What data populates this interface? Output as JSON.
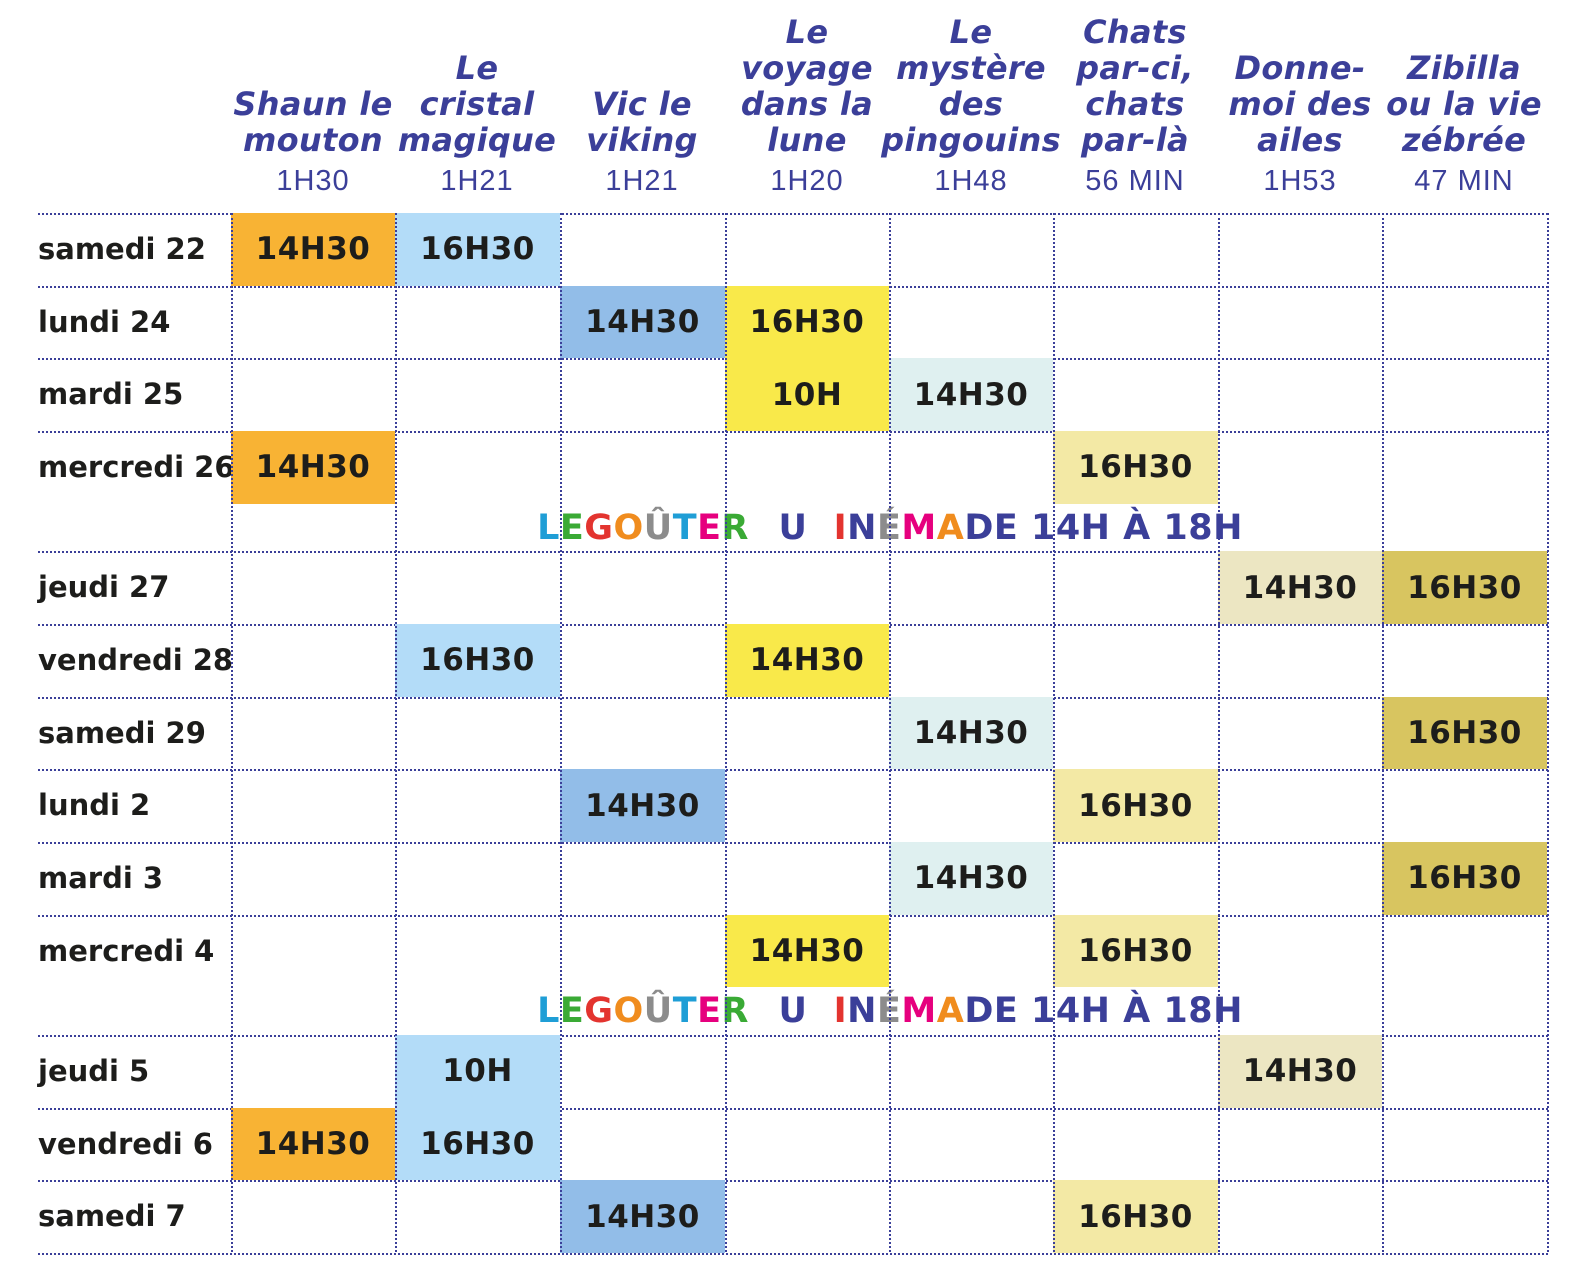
{
  "films": [
    {
      "title": [
        "Shaun le",
        "mouton"
      ],
      "duration": "1H30"
    },
    {
      "title": [
        "Le",
        "cristal",
        "magique"
      ],
      "duration": "1H21"
    },
    {
      "title": [
        "Vic le",
        "viking"
      ],
      "duration": "1H21"
    },
    {
      "title": [
        "Le",
        "voyage",
        "dans la",
        "lune"
      ],
      "duration": "1H20"
    },
    {
      "title": [
        "Le",
        "mystère",
        "des",
        "pingouins"
      ],
      "duration": "1H48"
    },
    {
      "title": [
        "Chats",
        "par-ci,",
        "chats",
        "par-là"
      ],
      "duration": "56 MIN"
    },
    {
      "title": [
        "Donne-",
        "moi des",
        "ailes"
      ],
      "duration": "1H53"
    },
    {
      "title": [
        "Zibilla",
        "ou la vie",
        "zébrée"
      ],
      "duration": "47 MIN"
    }
  ],
  "film_colors": [
    "#f8b334",
    "#b3dcf8",
    "#92bde8",
    "#f9e94a",
    "#dff0f0",
    "#f3e9a5",
    "#ece6c2",
    "#d8c560"
  ],
  "days": [
    {
      "label": "samedi 22",
      "sessions": [
        "14H30",
        "16H30",
        "",
        "",
        "",
        "",
        "",
        ""
      ]
    },
    {
      "label": "lundi 24",
      "sessions": [
        "",
        "",
        "14H30",
        "16H30",
        "",
        "",
        "",
        ""
      ]
    },
    {
      "label": "mardi 25",
      "sessions": [
        "",
        "",
        "",
        "10H",
        "14H30",
        "",
        "",
        ""
      ]
    },
    {
      "label": "mercredi 26",
      "sessions": [
        "14H30",
        "",
        "",
        "",
        "",
        "16H30",
        "",
        ""
      ],
      "banner": true
    },
    {
      "label": "jeudi 27",
      "sessions": [
        "",
        "",
        "",
        "",
        "",
        "",
        "14H30",
        "16H30"
      ]
    },
    {
      "label": "vendredi 28",
      "sessions": [
        "",
        "16H30",
        "",
        "14H30",
        "",
        "",
        "",
        ""
      ]
    },
    {
      "label": "samedi 29",
      "sessions": [
        "",
        "",
        "",
        "",
        "14H30",
        "",
        "",
        "16H30"
      ]
    },
    {
      "label": "lundi 2",
      "sessions": [
        "",
        "",
        "14H30",
        "",
        "",
        "16H30",
        "",
        ""
      ]
    },
    {
      "label": "mardi 3",
      "sessions": [
        "",
        "",
        "",
        "",
        "14H30",
        "",
        "",
        "16H30"
      ]
    },
    {
      "label": "mercredi 4",
      "sessions": [
        "",
        "",
        "",
        "14H30",
        "",
        "16H30",
        "",
        ""
      ],
      "banner": true
    },
    {
      "label": "jeudi 5",
      "sessions": [
        "",
        "10H",
        "",
        "",
        "",
        "",
        "14H30",
        ""
      ]
    },
    {
      "label": "vendredi 6",
      "sessions": [
        "14H30",
        "16H30",
        "",
        "",
        "",
        "",
        "",
        ""
      ]
    },
    {
      "label": "samedi 7",
      "sessions": [
        "",
        "",
        "14H30",
        "",
        "",
        "16H30",
        "",
        ""
      ]
    }
  ],
  "banner": {
    "colored_text": "LE GOÛTER DU CINÉMA",
    "rest_text": " DE 14H À 18H",
    "letter_colors": [
      "#1f9ed6",
      "#3aaa35",
      "#ffffff",
      "#e3342f",
      "#f08c1e",
      "#8c8c8c",
      "#1f9ed6",
      "#e6007e",
      "#3aaa35",
      "#e3342f",
      "#ffffff",
      "#3b3f99",
      "#1f9ed6",
      "#ffffff",
      "#e3342f",
      "#3b3f99",
      "#8c8c8c",
      "#e6007e",
      "#f08c1e"
    ]
  }
}
